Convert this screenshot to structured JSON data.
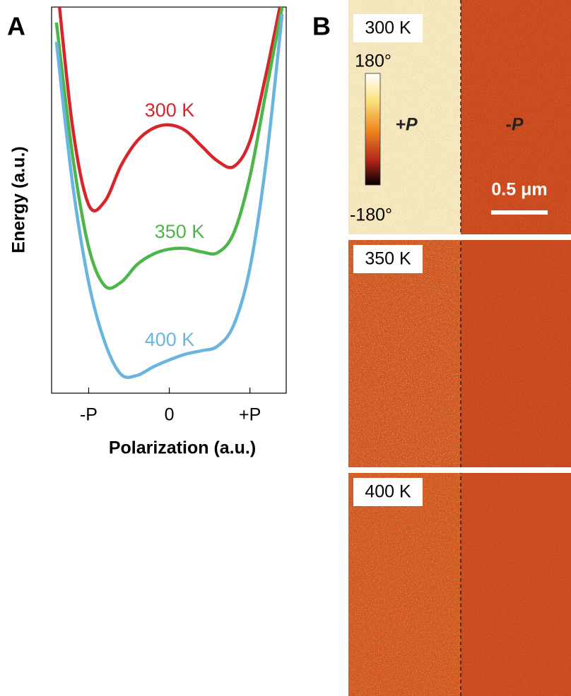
{
  "panel_labels": [
    "A",
    "B"
  ],
  "chart_data": {
    "type": "line",
    "xlabel": "Polarization (a.u.)",
    "ylabel": "Energy (a.u.)",
    "x": [
      -1.4,
      -1.2,
      -1.0,
      -0.8,
      -0.6,
      -0.4,
      -0.2,
      0,
      0.2,
      0.4,
      0.6,
      0.8,
      1.0,
      1.2,
      1.4
    ],
    "series": [
      {
        "name": "300 K",
        "color": "#d7262b",
        "values": [
          10.8,
          6.9,
          4.88,
          4.97,
          5.89,
          6.53,
          6.86,
          6.95,
          6.8,
          6.4,
          6.01,
          5.87,
          6.53,
          8.26,
          10.3
        ]
      },
      {
        "name": "350 K",
        "color": "#4cb648",
        "values": [
          9.6,
          6.16,
          3.78,
          2.78,
          2.87,
          3.33,
          3.6,
          3.73,
          3.75,
          3.66,
          3.64,
          4.15,
          5.61,
          7.81,
          10.0
        ]
      },
      {
        "name": "400 K",
        "color": "#6ab4e0",
        "values": [
          9.1,
          5.43,
          2.87,
          1.32,
          0.49,
          0.46,
          0.68,
          0.86,
          1.01,
          1.1,
          1.22,
          1.77,
          3.24,
          5.98,
          9.82
        ]
      }
    ],
    "xlim": [
      -1.46,
      1.45
    ],
    "ylim": [
      0,
      10
    ],
    "xticks": [
      {
        "value": -1,
        "label": "-P"
      },
      0,
      {
        "value": 1,
        "label": "+P"
      }
    ]
  },
  "maps": {
    "panels": [
      {
        "label": "300 K"
      },
      {
        "label": "350 K"
      },
      {
        "label": "400 K"
      }
    ],
    "colorbar": {
      "max_label": "180°",
      "min_label": "-180°"
    },
    "domain_labels": [
      "+P",
      "-P"
    ],
    "scale_bar": "0.5 μm"
  }
}
